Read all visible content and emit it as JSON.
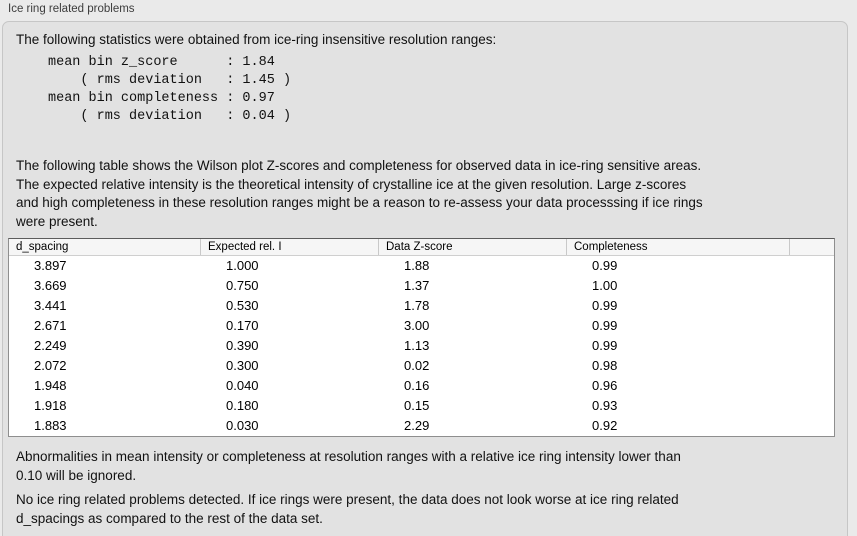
{
  "panel": {
    "title": "Ice ring related problems"
  },
  "statistics": {
    "intro": "The following statistics were obtained from ice-ring insensitive resolution ranges:",
    "text": "mean bin z_score      : 1.84\n    ( rms deviation   : 1.45 )\nmean bin completeness : 0.97\n    ( rms deviation   : 0.04 )",
    "mean_bin_z_score": "1.84",
    "z_score_rms_deviation": "1.45",
    "mean_bin_completeness": "0.97",
    "completeness_rms_deviation": "0.04"
  },
  "description": {
    "text": "The following table shows the Wilson plot Z-scores and completeness for observed data in ice-ring sensitive areas.\nThe expected relative intensity is the theoretical intensity of crystalline ice at the given resolution. Large z-scores\nand high completeness in these resolution ranges might be a reason to re-assess your data processsing if ice rings\nwere present."
  },
  "table": {
    "headers": [
      "d_spacing",
      "Expected rel. I",
      "Data Z-score",
      "Completeness",
      ""
    ],
    "rows": [
      [
        "3.897",
        "1.000",
        "1.88",
        "0.99"
      ],
      [
        "3.669",
        "0.750",
        "1.37",
        "1.00"
      ],
      [
        "3.441",
        "0.530",
        "1.78",
        "0.99"
      ],
      [
        "2.671",
        "0.170",
        "3.00",
        "0.99"
      ],
      [
        "2.249",
        "0.390",
        "1.13",
        "0.99"
      ],
      [
        "2.072",
        "0.300",
        "0.02",
        "0.98"
      ],
      [
        "1.948",
        "0.040",
        "0.16",
        "0.96"
      ],
      [
        "1.918",
        "0.180",
        "0.15",
        "0.93"
      ],
      [
        "1.883",
        "0.030",
        "2.29",
        "0.92"
      ]
    ]
  },
  "notes": {
    "ignore_rule": "Abnormalities in mean intensity or completeness at resolution ranges with a relative ice ring intensity lower than\n0.10 will be ignored.",
    "conclusion": "No ice ring related problems detected. If ice rings were present, the data does not look worse at ice ring related\nd_spacings as compared to the rest of the data set."
  },
  "colors": {
    "window_background": "#eaeaea",
    "groupbox_background": "#e2e2e2",
    "groupbox_border": "#c6c6c6",
    "table_background": "#ffffff",
    "table_border": "#8e8e8e",
    "header_background": "#f6f6f6",
    "text": "#111111",
    "label_text": "#3d3d3d"
  }
}
